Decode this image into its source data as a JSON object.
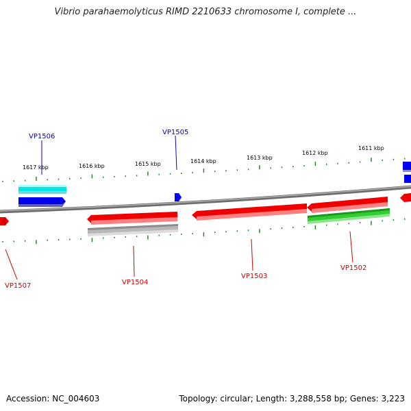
{
  "title": "Vibrio parahaemolyticus RIMD 2210633 chromosome I, complete ...",
  "ruler": {
    "unit": "kbp",
    "ticks": [
      "1617 kbp",
      "1616 kbp",
      "1615 kbp",
      "1614 kbp",
      "1613 kbp",
      "1612 kbp",
      "1611 kbp"
    ]
  },
  "gene_labels": {
    "forward": [
      "VP1506",
      "VP1505"
    ],
    "reverse": [
      "VP1507",
      "VP1504",
      "VP1503",
      "VP1502"
    ]
  },
  "colors": {
    "forward_label": "#0000cc",
    "reverse_label": "#cc0000",
    "backbone": "#808080",
    "tick": "#228b22",
    "cyan": "#00e5e5",
    "blue": "#0000ee",
    "red": "#ee0000",
    "gray": "#b0b0b0",
    "green": "#33cc33"
  },
  "footer": {
    "accession": "Accession: NC_004603",
    "summary": "Topology: circular; Length: 3,288,558 bp; Genes: 3,223"
  }
}
